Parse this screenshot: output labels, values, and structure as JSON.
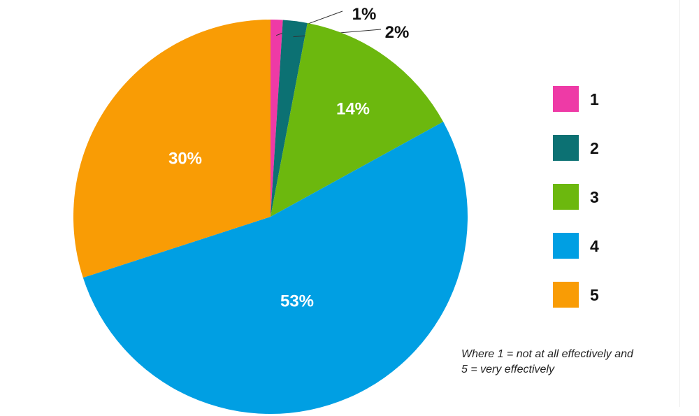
{
  "chart_data": {
    "type": "pie",
    "slices": [
      {
        "label": "1",
        "value": 1,
        "value_label": "1%",
        "color": "#ee3aa6"
      },
      {
        "label": "2",
        "value": 2,
        "value_label": "2%",
        "color": "#0c7173"
      },
      {
        "label": "3",
        "value": 14,
        "value_label": "14%",
        "color": "#6cb80e"
      },
      {
        "label": "4",
        "value": 53,
        "value_label": "53%",
        "color": "#009fe3"
      },
      {
        "label": "5",
        "value": 30,
        "value_label": "30%",
        "color": "#f99c05"
      }
    ],
    "start_angle": "12 o'clock",
    "direction": "clockwise",
    "legend_position": "right",
    "note_lines": [
      "Where 1 = not at all effectively and",
      "5 = very effectively"
    ]
  }
}
